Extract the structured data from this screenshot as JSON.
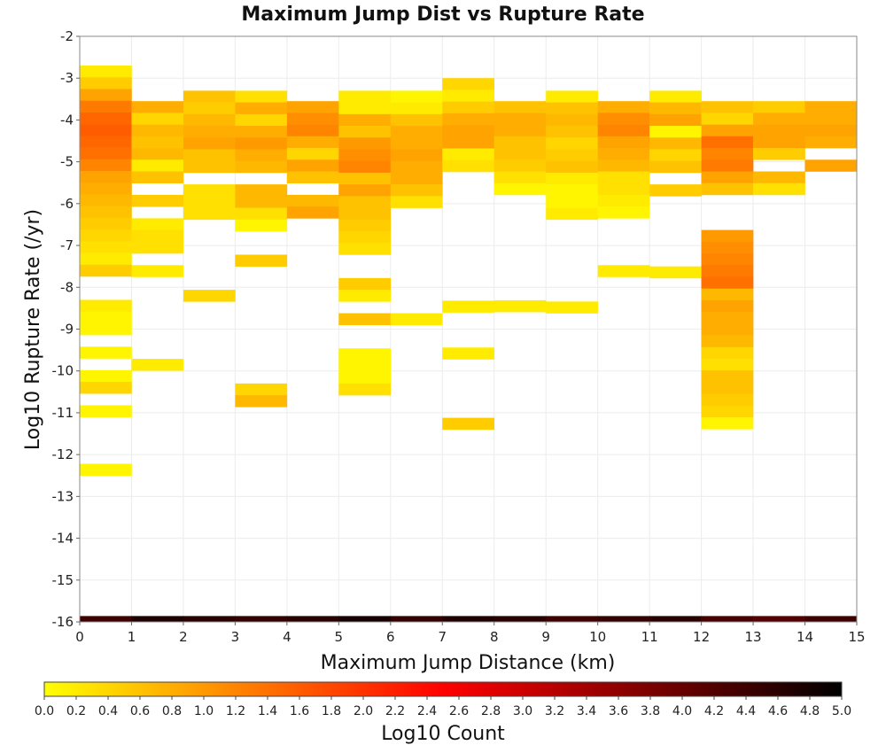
{
  "chart_data": {
    "type": "heatmap",
    "title": "Maximum Jump Dist vs Rupture Rate",
    "xlabel": "Maximum Jump Distance (km)",
    "ylabel": "Log10 Rupture Rate (/yr)",
    "colorbar_label": "Log10 Count",
    "xlim": [
      0,
      15
    ],
    "ylim": [
      -16,
      -2
    ],
    "x_bin_width": 1,
    "y_bin_width": 0.28,
    "x_ticks": [
      0,
      1,
      2,
      3,
      4,
      5,
      6,
      7,
      8,
      9,
      10,
      11,
      12,
      13,
      14,
      15
    ],
    "y_ticks": [
      -16,
      -15,
      -14,
      -13,
      -12,
      -11,
      -10,
      -9,
      -8,
      -7,
      -6,
      -5,
      -4,
      -3,
      -2
    ],
    "colorbar_range": [
      0.0,
      5.0
    ],
    "colorbar_ticks": [
      "0.0",
      "0.2",
      "0.4",
      "0.6",
      "0.8",
      "1.0",
      "1.2",
      "1.4",
      "1.6",
      "1.8",
      "2.0",
      "2.2",
      "2.4",
      "2.6",
      "2.8",
      "3.0",
      "3.2",
      "3.4",
      "3.6",
      "3.8",
      "4.0",
      "4.2",
      "4.4",
      "4.6",
      "4.8",
      "5.0"
    ],
    "colormap": [
      "#ffff00",
      "#ff0000",
      "#000000"
    ],
    "grid": true,
    "columns": [
      {
        "x": 0,
        "y_start": -2.7,
        "values": [
          0.2,
          0.5,
          0.9,
          1.3,
          1.5,
          1.6,
          1.5,
          1.4,
          1.2,
          0.9,
          0.8,
          0.7,
          0.6,
          0.5,
          0.4,
          0.3,
          0.2,
          0.5,
          0,
          0,
          0.2,
          0.1,
          0.1,
          0,
          0.1,
          0,
          0.1,
          0.4,
          0,
          0.1,
          0,
          0,
          0,
          0,
          0.1
        ]
      },
      {
        "x": 1,
        "y_start": -3.55,
        "values": [
          0.8,
          0.4,
          0.7,
          0.6,
          0.7,
          0.2,
          0.6,
          0,
          0.5,
          0,
          0.2,
          0.3,
          0.3,
          0,
          0.2,
          0,
          0,
          0,
          0,
          0,
          0,
          0,
          0.2
        ]
      },
      {
        "x": 2,
        "y_start": -3.3,
        "values": [
          0.6,
          0.5,
          0.7,
          0.8,
          0.9,
          0.6,
          0.6,
          0,
          0.3,
          0.3,
          0.3,
          0,
          0,
          0,
          0,
          0,
          0,
          0.4
        ]
      },
      {
        "x": 3,
        "y_start": -3.3,
        "values": [
          0.3,
          0.8,
          0.4,
          0.8,
          1.0,
          0.8,
          0.7,
          0,
          0.7,
          0.7,
          0.3,
          0.1,
          0,
          0,
          0.5,
          0,
          0,
          0,
          0,
          0,
          0,
          0,
          0,
          0,
          0,
          0.4,
          0.7
        ]
      },
      {
        "x": 4,
        "y_start": -3.55,
        "values": [
          0.9,
          1.1,
          1.2,
          0.8,
          0.4,
          0.9,
          0.6,
          0,
          0.7,
          0.9
        ]
      },
      {
        "x": 5,
        "y_start": -3.3,
        "values": [
          0.2,
          0.2,
          0.8,
          0.6,
          1.0,
          1.1,
          1.2,
          0.6,
          0.9,
          0.6,
          0.6,
          0.5,
          0.4,
          0.3,
          0,
          0,
          0.5,
          0.2,
          0,
          0.6,
          0,
          0,
          0.1,
          0.1,
          0.1,
          0.3
        ]
      },
      {
        "x": 6,
        "y_start": -3.3,
        "values": [
          0.1,
          0.2,
          0.6,
          0.8,
          0.8,
          0.9,
          0.8,
          0.8,
          0.6,
          0.3,
          0,
          0,
          0,
          0,
          0,
          0,
          0,
          0,
          0,
          0.2
        ]
      },
      {
        "x": 7,
        "y_start": -3.0,
        "values": [
          0.4,
          0.2,
          0.5,
          0.8,
          0.9,
          0.9,
          0.2,
          0.3,
          0,
          0,
          0,
          0,
          0,
          0,
          0,
          0,
          0,
          0,
          0,
          0.2,
          0,
          0,
          0,
          0.2,
          0,
          0,
          0,
          0,
          0,
          0.5
        ]
      },
      {
        "x": 8,
        "y_start": -3.55,
        "values": [
          0.6,
          0.8,
          0.8,
          0.6,
          0.6,
          0.5,
          0.3,
          0.1,
          0,
          0,
          0,
          0,
          0,
          0,
          0,
          0,
          0,
          0.2
        ]
      },
      {
        "x": 9,
        "y_start": -3.3,
        "values": [
          0.2,
          0.6,
          0.7,
          0.6,
          0.4,
          0.5,
          0.6,
          0.2,
          0.1,
          0.1,
          0.2,
          0,
          0,
          0,
          0,
          0,
          0,
          0,
          0.2
        ]
      },
      {
        "x": 10,
        "y_start": -3.55,
        "values": [
          0.8,
          1.1,
          1.2,
          0.9,
          0.8,
          0.7,
          0.3,
          0.3,
          0.2,
          0.1,
          0,
          0,
          0,
          0,
          0.2
        ]
      },
      {
        "x": 11,
        "y_start": -3.3,
        "values": [
          0.2,
          0.7,
          0.9,
          0.1,
          0.7,
          0.4,
          0.6,
          0,
          0.5,
          0,
          0,
          0,
          0,
          0,
          0,
          0.2
        ]
      },
      {
        "x": 12,
        "y_start": -3.55,
        "values": [
          0.6,
          0.4,
          0.9,
          1.4,
          1.2,
          1.3,
          0.9,
          0.6,
          0,
          0,
          0,
          1.0,
          1.1,
          1.2,
          1.3,
          1.4,
          0.7,
          0.9,
          0.8,
          0.8,
          0.7,
          0.4,
          0.3,
          0.6,
          0.6,
          0.5,
          0.4,
          0.1
        ]
      },
      {
        "x": 13,
        "y_start": -3.55,
        "values": [
          0.5,
          0.8,
          0.9,
          0.9,
          0.5,
          0,
          0.7,
          0.3
        ]
      },
      {
        "x": 14,
        "y_start": -3.55,
        "values": [
          0.8,
          0.8,
          0.9,
          0.8,
          0,
          0.9
        ]
      }
    ],
    "bottom_row": {
      "y": -16,
      "values": [
        4.4,
        4.7,
        4.6,
        4.5,
        4.6,
        4.8,
        4.5,
        4.7,
        4.6,
        4.4,
        4.5,
        4.6,
        4.3,
        4.2,
        4.4
      ]
    }
  }
}
